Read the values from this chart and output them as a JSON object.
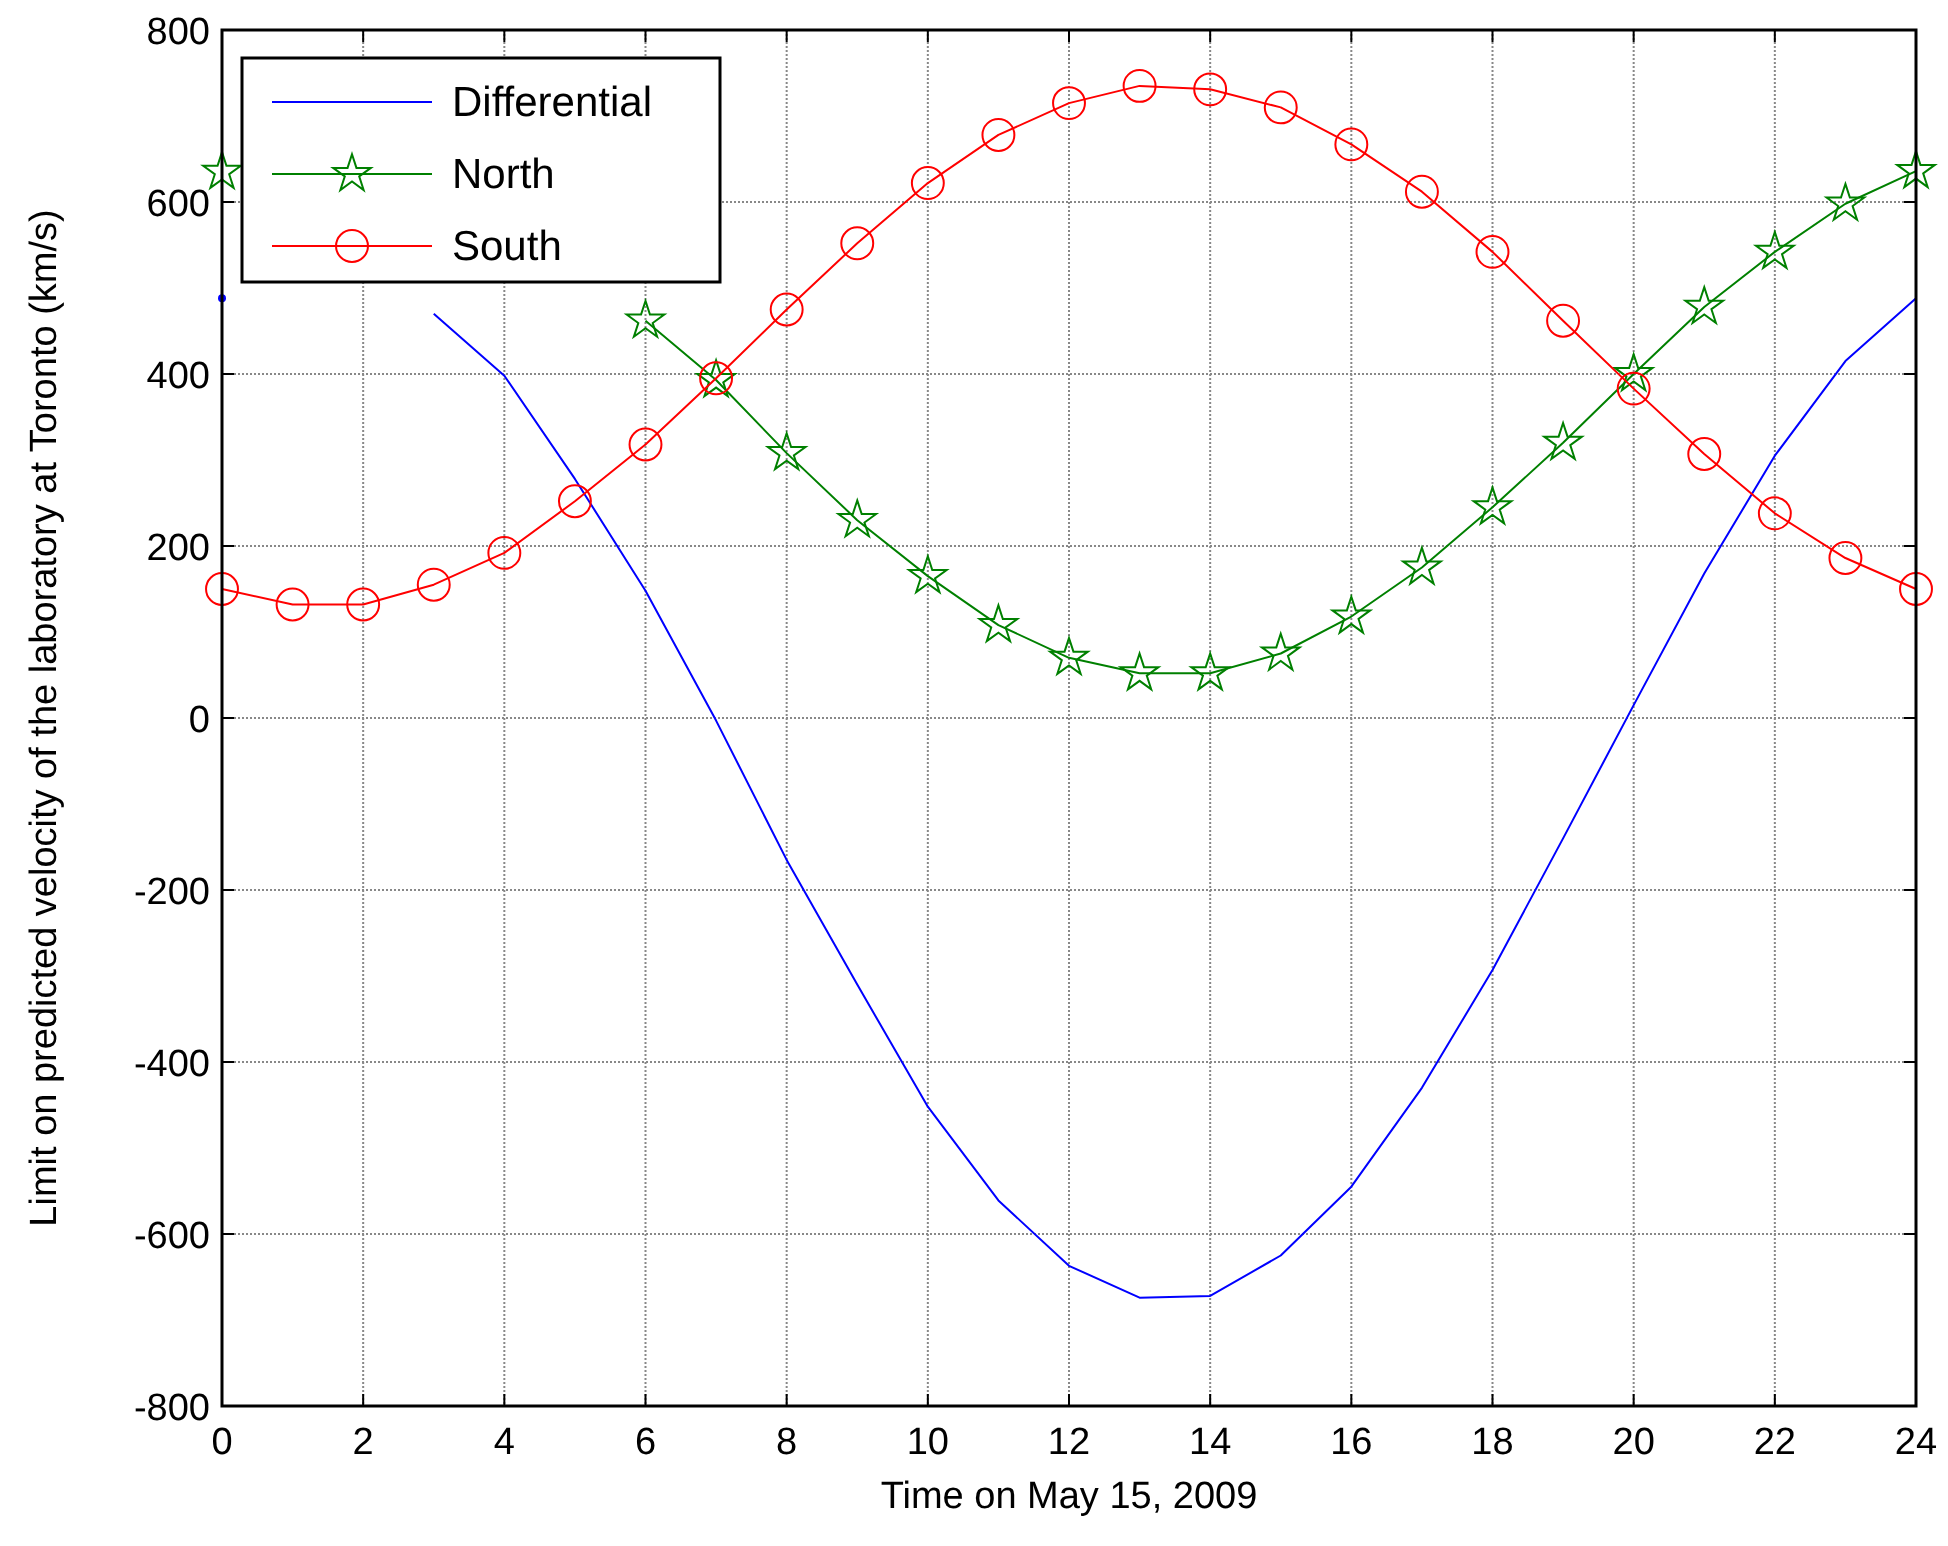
{
  "chart_data": {
    "type": "line",
    "xlabel": "Time on May 15, 2009",
    "ylabel": "Limit on predicted velocity of the laboratory at Toronto (km/s)",
    "x": [
      0,
      1,
      2,
      3,
      4,
      5,
      6,
      7,
      8,
      9,
      10,
      11,
      12,
      13,
      14,
      15,
      16,
      17,
      18,
      19,
      20,
      21,
      22,
      23,
      24
    ],
    "series": [
      {
        "name": "Differential",
        "color": "#0000ff",
        "marker": "none",
        "values": [
          488,
          null,
          null,
          470,
          398,
          278,
          148,
          -3,
          -165,
          -310,
          -452,
          -561,
          -637,
          -674,
          -672,
          -625,
          -545,
          -430,
          -293,
          -140,
          15,
          168,
          305,
          415,
          488
        ]
      },
      {
        "name": "North",
        "color": "#008000",
        "marker": "star",
        "values": [
          635,
          null,
          null,
          null,
          null,
          null,
          462,
          393,
          308,
          230,
          165,
          108,
          70,
          52,
          52,
          75,
          118,
          175,
          245,
          320,
          400,
          478,
          542,
          598,
          636
        ]
      },
      {
        "name": "South",
        "color": "#ff0000",
        "marker": "circle",
        "values": [
          150,
          132,
          132,
          155,
          192,
          252,
          318,
          395,
          475,
          552,
          622,
          678,
          715,
          735,
          731,
          710,
          667,
          612,
          542,
          462,
          383,
          307,
          238,
          186,
          150
        ]
      }
    ],
    "xlim": [
      0,
      24
    ],
    "xticks": [
      0,
      2,
      4,
      6,
      8,
      10,
      12,
      14,
      16,
      18,
      20,
      22,
      24
    ],
    "ylim": [
      -800,
      800
    ],
    "yticks": [
      -800,
      -600,
      -400,
      -200,
      0,
      200,
      400,
      600,
      800
    ],
    "grid": true,
    "legend": "top left",
    "line_style": "solid"
  }
}
